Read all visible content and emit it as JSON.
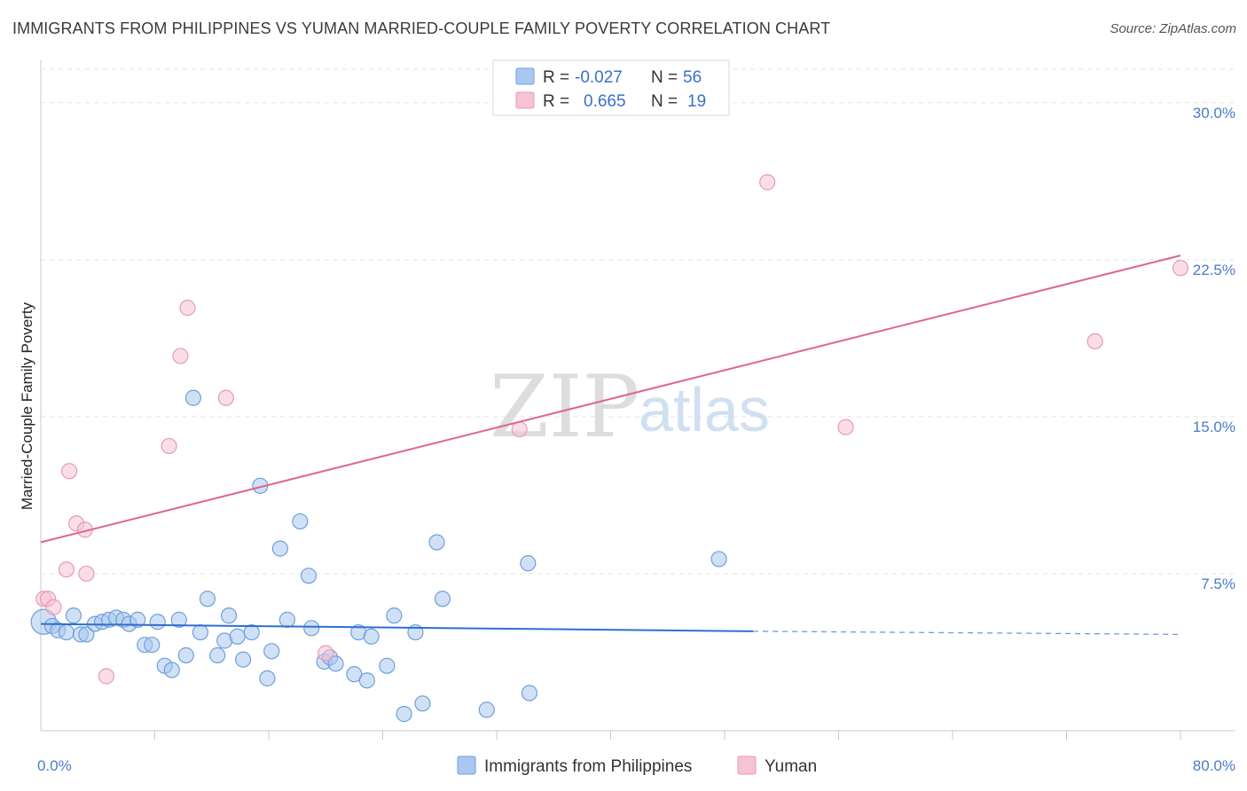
{
  "header": {
    "title": "IMMIGRANTS FROM PHILIPPINES VS YUMAN MARRIED-COUPLE FAMILY POVERTY CORRELATION CHART",
    "source": "Source: ZipAtlas.com"
  },
  "watermark": {
    "zip": "ZIP",
    "atlas": "atlas"
  },
  "legend": {
    "rows": [
      {
        "r_label": "R =",
        "r_value": "-0.027",
        "n_label": "N =",
        "n_value": "56"
      },
      {
        "r_label": "R =",
        "r_value": "0.665",
        "n_label": "N =",
        "n_value": "19"
      }
    ]
  },
  "colors": {
    "blue_fill": "#a9c8ef",
    "blue_stroke": "#6f9fdc",
    "blue_line": "#2f6fcf",
    "pink_fill": "#f6c3d3",
    "pink_stroke": "#e89ab3",
    "pink_line": "#e06590",
    "tick": "#4a7cc9",
    "grid": "#e3e3e3"
  },
  "chart_data": {
    "type": "scatter",
    "ylabel": "Married-Couple Family Poverty",
    "xlim": [
      0,
      80
    ],
    "ylim": [
      0,
      31.6
    ],
    "x_tick_labels": [
      {
        "value": 0,
        "label": "0.0%"
      },
      {
        "value": 80,
        "label": "80.0%"
      }
    ],
    "y_tick_labels": [
      {
        "value": 7.5,
        "label": "7.5%"
      },
      {
        "value": 15,
        "label": "15.0%"
      },
      {
        "value": 22.5,
        "label": "22.5%"
      },
      {
        "value": 30,
        "label": "30.0%"
      }
    ],
    "grid": true,
    "legend_position": "top-center",
    "series": [
      {
        "name": "Immigrants from Philippines",
        "color": "#a9c8ef",
        "trend": {
          "x0": 0,
          "y0": 5.1,
          "x1": 50,
          "y1": 4.75,
          "dashed_to_x": 80,
          "dashed_to_y": 4.6
        },
        "points": [
          {
            "x": 0.2,
            "y": 5.2,
            "big": true
          },
          {
            "x": 0.8,
            "y": 5.0
          },
          {
            "x": 1.2,
            "y": 4.8
          },
          {
            "x": 1.8,
            "y": 4.7
          },
          {
            "x": 2.3,
            "y": 5.5
          },
          {
            "x": 2.8,
            "y": 4.6
          },
          {
            "x": 3.2,
            "y": 4.6
          },
          {
            "x": 3.8,
            "y": 5.1
          },
          {
            "x": 4.3,
            "y": 5.2
          },
          {
            "x": 4.8,
            "y": 5.3
          },
          {
            "x": 5.3,
            "y": 5.4
          },
          {
            "x": 5.8,
            "y": 5.3
          },
          {
            "x": 6.2,
            "y": 5.1
          },
          {
            "x": 6.8,
            "y": 5.3
          },
          {
            "x": 7.3,
            "y": 4.1
          },
          {
            "x": 7.8,
            "y": 4.1
          },
          {
            "x": 8.2,
            "y": 5.2
          },
          {
            "x": 8.7,
            "y": 3.1
          },
          {
            "x": 9.2,
            "y": 2.9
          },
          {
            "x": 9.7,
            "y": 5.3
          },
          {
            "x": 10.2,
            "y": 3.6
          },
          {
            "x": 10.7,
            "y": 15.9
          },
          {
            "x": 11.2,
            "y": 4.7
          },
          {
            "x": 11.7,
            "y": 6.3
          },
          {
            "x": 12.4,
            "y": 3.6
          },
          {
            "x": 12.9,
            "y": 4.3
          },
          {
            "x": 13.2,
            "y": 5.5
          },
          {
            "x": 13.8,
            "y": 4.5
          },
          {
            "x": 14.2,
            "y": 3.4
          },
          {
            "x": 14.8,
            "y": 4.7
          },
          {
            "x": 15.4,
            "y": 11.7
          },
          {
            "x": 15.9,
            "y": 2.5
          },
          {
            "x": 16.2,
            "y": 3.8
          },
          {
            "x": 16.8,
            "y": 8.7
          },
          {
            "x": 17.3,
            "y": 5.3
          },
          {
            "x": 18.2,
            "y": 10.0
          },
          {
            "x": 18.8,
            "y": 7.4
          },
          {
            "x": 19.0,
            "y": 4.9
          },
          {
            "x": 19.9,
            "y": 3.3
          },
          {
            "x": 20.3,
            "y": 3.5
          },
          {
            "x": 20.7,
            "y": 3.2
          },
          {
            "x": 22.0,
            "y": 2.7
          },
          {
            "x": 22.3,
            "y": 4.7
          },
          {
            "x": 22.9,
            "y": 2.4
          },
          {
            "x": 23.2,
            "y": 4.5
          },
          {
            "x": 24.3,
            "y": 3.1
          },
          {
            "x": 24.8,
            "y": 5.5
          },
          {
            "x": 25.5,
            "y": 0.8
          },
          {
            "x": 26.3,
            "y": 4.7
          },
          {
            "x": 26.8,
            "y": 1.3
          },
          {
            "x": 27.8,
            "y": 9.0
          },
          {
            "x": 28.2,
            "y": 6.3
          },
          {
            "x": 31.3,
            "y": 1.0
          },
          {
            "x": 34.2,
            "y": 8.0
          },
          {
            "x": 34.3,
            "y": 1.8
          },
          {
            "x": 47.6,
            "y": 8.2
          }
        ]
      },
      {
        "name": "Yuman",
        "color": "#f6c3d3",
        "trend": {
          "x0": 0,
          "y0": 9.0,
          "x1": 80,
          "y1": 22.7
        },
        "points": [
          {
            "x": 0.2,
            "y": 6.3
          },
          {
            "x": 0.5,
            "y": 6.3
          },
          {
            "x": 0.9,
            "y": 5.9
          },
          {
            "x": 1.8,
            "y": 7.7
          },
          {
            "x": 2.0,
            "y": 12.4
          },
          {
            "x": 2.5,
            "y": 9.9
          },
          {
            "x": 3.1,
            "y": 9.6
          },
          {
            "x": 3.2,
            "y": 7.5
          },
          {
            "x": 4.6,
            "y": 2.6
          },
          {
            "x": 9.0,
            "y": 13.6
          },
          {
            "x": 9.8,
            "y": 17.9
          },
          {
            "x": 10.3,
            "y": 20.2
          },
          {
            "x": 13.0,
            "y": 15.9
          },
          {
            "x": 20.0,
            "y": 3.7
          },
          {
            "x": 33.6,
            "y": 14.4
          },
          {
            "x": 51.0,
            "y": 26.2
          },
          {
            "x": 56.5,
            "y": 14.5
          },
          {
            "x": 74.0,
            "y": 18.6
          },
          {
            "x": 80.0,
            "y": 22.1
          }
        ]
      }
    ]
  }
}
